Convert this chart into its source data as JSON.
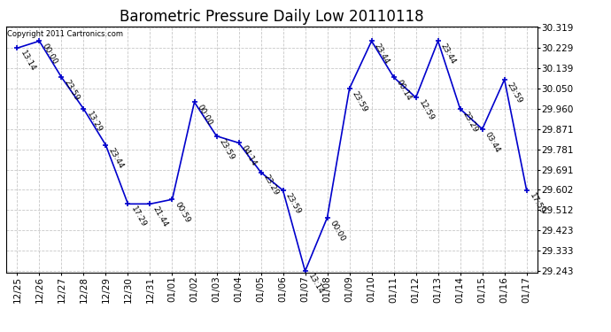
{
  "title": "Barometric Pressure Daily Low 20110118",
  "copyright": "Copyright 2011 Cartronics.com",
  "x_labels": [
    "12/25",
    "12/26",
    "12/27",
    "12/28",
    "12/29",
    "12/30",
    "12/31",
    "01/01",
    "01/02",
    "01/03",
    "01/04",
    "01/05",
    "01/06",
    "01/07",
    "01/08",
    "01/09",
    "01/10",
    "01/11",
    "01/12",
    "01/13",
    "01/14",
    "01/15",
    "01/16",
    "01/17"
  ],
  "y_values": [
    30.229,
    30.26,
    30.1,
    29.96,
    29.8,
    29.54,
    29.54,
    29.56,
    29.99,
    29.84,
    29.81,
    29.68,
    29.6,
    29.243,
    29.48,
    30.05,
    30.26,
    30.1,
    30.01,
    30.26,
    29.96,
    29.871,
    30.09,
    29.6
  ],
  "time_labels": [
    "13:14",
    "00:00",
    "23:59",
    "13:29",
    "23:44",
    "17:29",
    "21:44",
    "00:59",
    "00:00",
    "23:59",
    "04:14",
    "23:29",
    "23:59",
    "13:14",
    "00:00",
    "23:59",
    "23:44",
    "00:14",
    "12:59",
    "23:44",
    "23:29",
    "03:44",
    "23:59",
    "17:59"
  ],
  "y_ticks": [
    29.243,
    29.333,
    29.423,
    29.512,
    29.602,
    29.691,
    29.781,
    29.871,
    29.96,
    30.05,
    30.139,
    30.229,
    30.319
  ],
  "y_tick_labels": [
    "29.243",
    "29.333",
    "29.423",
    "29.512",
    "29.602",
    "29.691",
    "29.781",
    "29.871",
    "29.960",
    "30.050",
    "30.139",
    "30.229",
    "30.319"
  ],
  "line_color": "#0000cc",
  "marker_color": "#0000cc",
  "bg_color": "#ffffff",
  "plot_bg_color": "#ffffff",
  "grid_color": "#c8c8c8",
  "title_fontsize": 12,
  "tick_fontsize": 7.5,
  "annotation_fontsize": 6.5
}
